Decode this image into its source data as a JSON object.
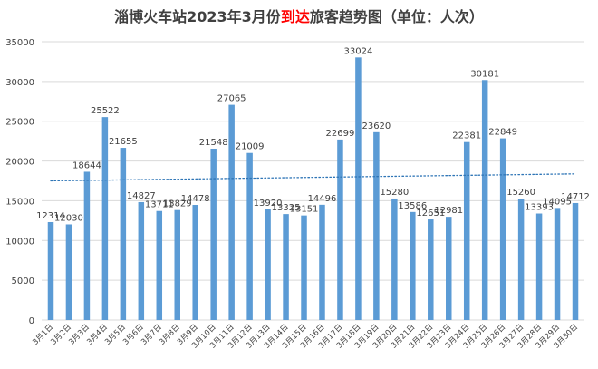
{
  "chart_data": {
    "type": "bar",
    "title": {
      "before": "淄博火车站2023年3月份",
      "highlight": "到达",
      "after": "旅客趋势图（单位：人次）"
    },
    "categories": [
      "3月1日",
      "3月2日",
      "3月3日",
      "3月4日",
      "3月5日",
      "3月6日",
      "3月7日",
      "3月8日",
      "3月9日",
      "3月10日",
      "3月11日",
      "3月12日",
      "3月13日",
      "3月14日",
      "3月15日",
      "3月16日",
      "3月17日",
      "3月18日",
      "3月19日",
      "3月20日",
      "3月21日",
      "3月22日",
      "3月23日",
      "3月24日",
      "3月25日",
      "3月26日",
      "3月27日",
      "3月28日",
      "3月29日",
      "3月30日"
    ],
    "values": [
      12314,
      12030,
      18644,
      25522,
      21655,
      14827,
      13711,
      13829,
      14478,
      21548,
      27065,
      21009,
      13920,
      13325,
      13151,
      14496,
      22699,
      33024,
      23620,
      15280,
      13586,
      12651,
      12981,
      22381,
      30181,
      22849,
      15260,
      13393,
      14095,
      14712
    ],
    "ylim": [
      0,
      35000
    ],
    "yticks": [
      0,
      5000,
      10000,
      15000,
      20000,
      25000,
      30000,
      35000
    ],
    "grid": true,
    "trendline": {
      "type": "linear",
      "style": "dotted"
    },
    "colors": {
      "bar": "#5B9BD5",
      "trend": "#2E75B6",
      "grid": "#D9D9D9",
      "title": "#404040",
      "highlight": "#FF0000",
      "text": "#404040"
    }
  }
}
